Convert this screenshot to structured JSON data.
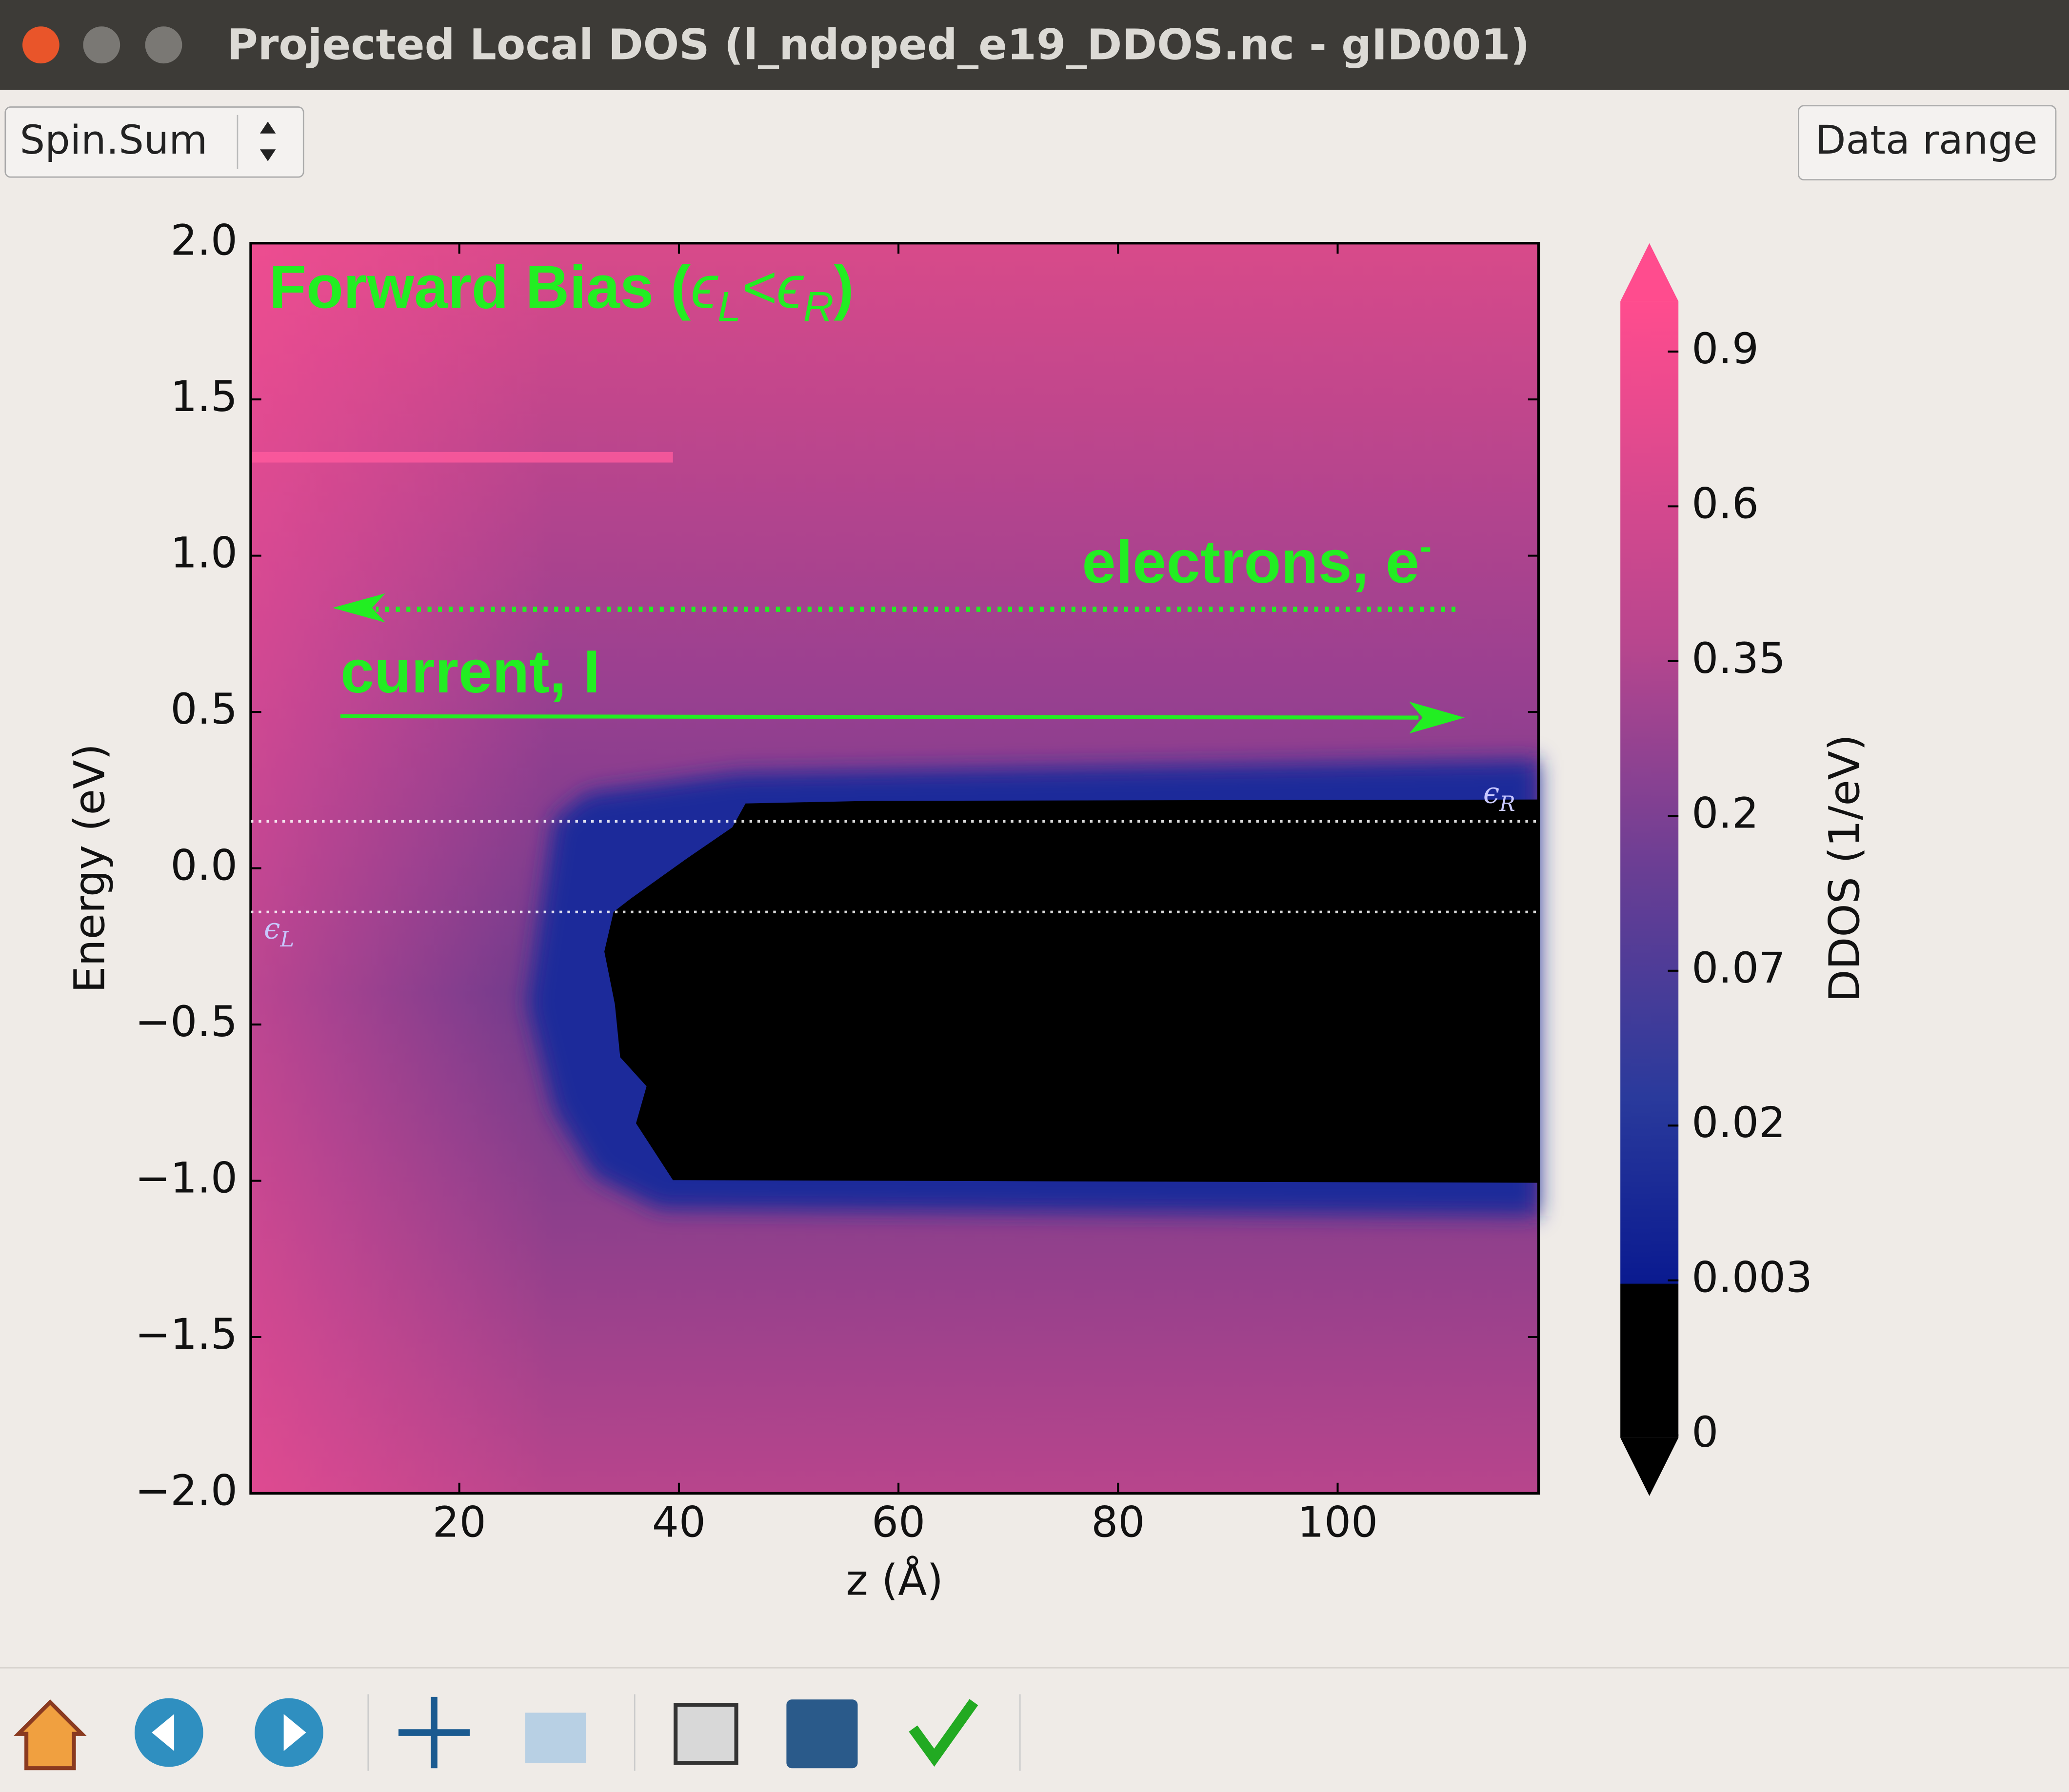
{
  "window": {
    "title": "Projected Local DOS (l_ndoped_e19_DDOS.nc - gID001)"
  },
  "controls": {
    "spin_select": "Spin.Sum",
    "data_range_button": "Data range"
  },
  "chart_data": {
    "type": "heatmap",
    "xlabel": "z (Å)",
    "ylabel": "Energy (eV)",
    "xlim": [
      1,
      118.3
    ],
    "xticks": [
      20,
      40,
      60,
      80,
      100
    ],
    "ylim": [
      -2,
      2
    ],
    "yticks": [
      {
        "value": -2,
        "label": "−2.0"
      },
      {
        "value": -1.5,
        "label": "−1.5"
      },
      {
        "value": -1,
        "label": "−1.0"
      },
      {
        "value": -0.5,
        "label": "−0.5"
      },
      {
        "value": 0,
        "label": "0.0"
      },
      {
        "value": 0.5,
        "label": "0.5"
      },
      {
        "value": 1,
        "label": "1.0"
      },
      {
        "value": 1.5,
        "label": "1.5"
      },
      {
        "value": 2,
        "label": "2.0"
      }
    ],
    "colorbar": {
      "label": "DDOS (1/eV)",
      "ticks": [
        0,
        0.003,
        0.02,
        0.07,
        0.2,
        0.35,
        0.6,
        0.9
      ]
    },
    "levels": [
      {
        "value": 0.15,
        "symbol": "ϵ",
        "sub": "R"
      },
      {
        "value": -0.14,
        "symbol": "ϵ",
        "sub": "L"
      }
    ],
    "annotations": {
      "title": [
        "Forward Bias (",
        "ϵ",
        "L",
        "<ϵ",
        "R",
        ")"
      ],
      "electrons": [
        "electrons, e",
        "-"
      ],
      "current": "current, I"
    }
  }
}
